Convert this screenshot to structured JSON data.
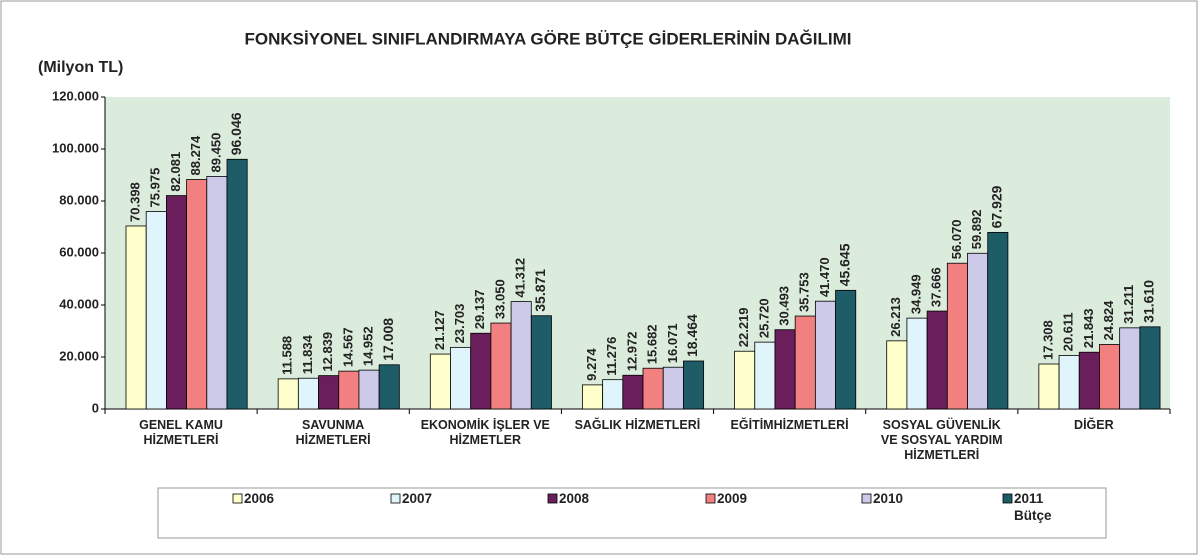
{
  "chart_data": {
    "type": "bar",
    "title": "FONKSİYONEL SINIFLANDIRMAYA GÖRE BÜTÇE GİDERLERİNİN DAĞILIMI",
    "y_label": "(Milyon TL)",
    "categories": [
      "GENEL KAMU\nHİZMETLERİ",
      "SAVUNMA\nHİZMETLERİ",
      "EKONOMİK İŞLER VE\nHİZMETLER",
      "SAĞLIK HİZMETLERİ",
      "EĞİTİMHİZMETLERİ",
      "SOSYAL GÜVENLİK\nVE SOSYAL YARDIM\nHİZMETLERİ",
      "DİĞER"
    ],
    "series": [
      {
        "name": "2006",
        "color": "#ffffcc",
        "values": [
          70398,
          11588,
          21127,
          9274,
          22219,
          26213,
          17308
        ],
        "value_labels": [
          "70.398",
          "11.588",
          "21.127",
          "9.274",
          "22.219",
          "26.213",
          "17.308"
        ]
      },
      {
        "name": "2007",
        "color": "#dff4fb",
        "values": [
          75975,
          11834,
          23703,
          11276,
          25720,
          34949,
          20611
        ],
        "value_labels": [
          "75.975",
          "11.834",
          "23.703",
          "11.276",
          "25.720",
          "34.949",
          "20.611"
        ]
      },
      {
        "name": "2008",
        "color": "#6a1f5c",
        "values": [
          82081,
          12839,
          29137,
          12972,
          30493,
          37666,
          21843
        ],
        "value_labels": [
          "82.081",
          "12.839",
          "29.137",
          "12.972",
          "30.493",
          "37.666",
          "21.843"
        ]
      },
      {
        "name": "2009",
        "color": "#f28080",
        "values": [
          88274,
          14567,
          33050,
          15682,
          35753,
          56070,
          24824
        ],
        "value_labels": [
          "88.274",
          "14.567",
          "33.050",
          "15.682",
          "35.753",
          "56.070",
          "24.824"
        ]
      },
      {
        "name": "2010",
        "color": "#ccc9e9",
        "values": [
          89450,
          14952,
          41312,
          16071,
          41470,
          59892,
          31211
        ],
        "value_labels": [
          "89.450",
          "14.952",
          "41.312",
          "16.071",
          "41.470",
          "59.892",
          "31.211"
        ]
      },
      {
        "name": "2011\nBütçe",
        "color": "#1e5c68",
        "values": [
          96046,
          17008,
          35871,
          18464,
          45645,
          67929,
          31610
        ],
        "value_labels": [
          "96.046",
          "17.008",
          "35.871",
          "18.464",
          "45.645",
          "67.929",
          "31.610"
        ]
      }
    ],
    "ylim": [
      0,
      120000
    ],
    "yticks": [
      0,
      {
        "value": 20000,
        "label": "20.000"
      },
      {
        "value": 40000,
        "label": "40.000"
      },
      {
        "value": 60000,
        "label": "60.000"
      },
      {
        "value": 80000,
        "label": "80.000"
      },
      {
        "value": 100000,
        "label": "100.000"
      },
      {
        "value": 120000,
        "label": "120.000"
      }
    ],
    "plot_background": "#dcecdc",
    "legend": "bottom"
  }
}
